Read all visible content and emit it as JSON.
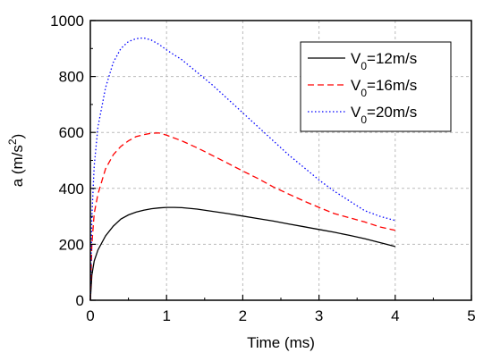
{
  "chart_data": {
    "type": "line",
    "xlabel": "Time (ms)",
    "ylabel_main": "a (m/s",
    "ylabel_sup": "2",
    "ylabel_close": ")",
    "xlim": [
      0,
      5
    ],
    "ylim": [
      0,
      1000
    ],
    "xticks": [
      "0",
      "1",
      "2",
      "3",
      "4",
      "5"
    ],
    "yticks": [
      "0",
      "200",
      "400",
      "600",
      "800",
      "1000"
    ],
    "grid": true,
    "legend_position": "top-right",
    "series": [
      {
        "name_main": "V",
        "name_sub": "0",
        "name_rest": "=12m/s",
        "color": "#000000",
        "dash": "solid",
        "x": [
          0,
          0.02,
          0.05,
          0.1,
          0.2,
          0.3,
          0.4,
          0.5,
          0.6,
          0.7,
          0.8,
          0.9,
          1.0,
          1.1,
          1.2,
          1.4,
          1.6,
          1.8,
          2.0,
          2.2,
          2.4,
          2.6,
          2.8,
          3.0,
          3.2,
          3.4,
          3.6,
          3.8,
          4.0
        ],
        "y": [
          0,
          90,
          140,
          180,
          230,
          265,
          290,
          305,
          315,
          322,
          327,
          330,
          332,
          332,
          331,
          326,
          318,
          310,
          301,
          292,
          283,
          273,
          263,
          253,
          243,
          232,
          220,
          206,
          192
        ]
      },
      {
        "name_main": "V",
        "name_sub": "0",
        "name_rest": "=16m/s",
        "color": "#ff0000",
        "dash": "dashed",
        "x": [
          0,
          0.02,
          0.05,
          0.1,
          0.2,
          0.3,
          0.4,
          0.5,
          0.6,
          0.7,
          0.8,
          0.9,
          1.0,
          1.2,
          1.4,
          1.6,
          1.8,
          2.0,
          2.2,
          2.4,
          2.6,
          2.8,
          3.0,
          3.2,
          3.4,
          3.6,
          3.8,
          4.0
        ],
        "y": [
          0,
          200,
          310,
          380,
          470,
          520,
          550,
          570,
          585,
          592,
          597,
          598,
          590,
          570,
          545,
          518,
          490,
          462,
          435,
          405,
          380,
          355,
          332,
          310,
          295,
          280,
          262,
          250
        ]
      },
      {
        "name_main": "V",
        "name_sub": "0",
        "name_rest": "=20m/s",
        "color": "#0000ff",
        "dash": "dotted",
        "x": [
          0,
          0.02,
          0.05,
          0.1,
          0.2,
          0.3,
          0.4,
          0.5,
          0.6,
          0.7,
          0.8,
          0.9,
          1.0,
          1.2,
          1.4,
          1.6,
          1.8,
          2.0,
          2.2,
          2.4,
          2.6,
          2.8,
          3.0,
          3.2,
          3.4,
          3.6,
          3.8,
          4.0
        ],
        "y": [
          0,
          300,
          480,
          620,
          760,
          850,
          900,
          925,
          935,
          938,
          930,
          915,
          895,
          860,
          815,
          770,
          720,
          670,
          620,
          570,
          520,
          475,
          430,
          390,
          355,
          320,
          300,
          285
        ]
      }
    ]
  }
}
